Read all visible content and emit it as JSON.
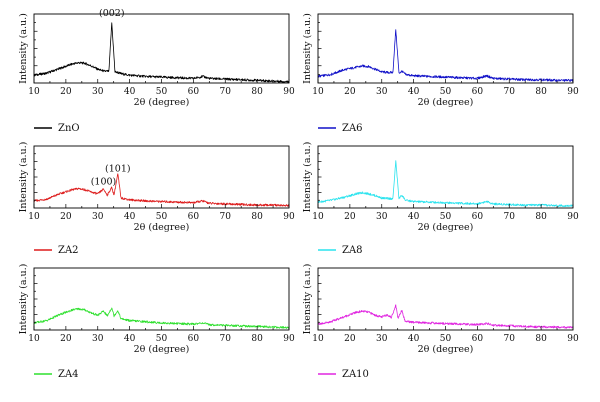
{
  "chart_data": [
    {
      "type": "line",
      "xlabel": "2θ (degree)",
      "ylabel": "Intensity (a.u.)",
      "xlim": [
        10,
        90
      ],
      "xticks": [
        10,
        20,
        30,
        40,
        50,
        60,
        70,
        80,
        90
      ],
      "grid": false,
      "legend_position": "below",
      "series": [
        {
          "name": "ZnO",
          "color": "#000000",
          "x": [
            10,
            14,
            18,
            22,
            24,
            26,
            28,
            30,
            32,
            33.5,
            34.4,
            35.4,
            36.3,
            37.5,
            40,
            45,
            50,
            55,
            60,
            62.9,
            65,
            70,
            75,
            80,
            85,
            90
          ],
          "y": [
            0.12,
            0.15,
            0.22,
            0.29,
            0.31,
            0.3,
            0.26,
            0.21,
            0.18,
            0.18,
            0.92,
            0.17,
            0.16,
            0.14,
            0.12,
            0.1,
            0.09,
            0.08,
            0.07,
            0.1,
            0.07,
            0.06,
            0.05,
            0.04,
            0.03,
            0.02
          ]
        }
      ],
      "annotations": [
        {
          "text": "(002)",
          "x": 34.4,
          "y": 1.02
        }
      ]
    },
    {
      "type": "line",
      "xlabel": "2θ (degree)",
      "ylabel": "Intensity (a.u.)",
      "xlim": [
        10,
        90
      ],
      "xticks": [
        10,
        20,
        30,
        40,
        50,
        60,
        70,
        80,
        90
      ],
      "grid": false,
      "legend_position": "below",
      "series": [
        {
          "name": "ZA6",
          "color": "#1010c8",
          "x": [
            10,
            14,
            18,
            22,
            24,
            26,
            28,
            30,
            32,
            33.5,
            34.4,
            35.4,
            36.3,
            37.5,
            40,
            45,
            50,
            55,
            60,
            62.9,
            65,
            70,
            75,
            80,
            85,
            90
          ],
          "y": [
            0.1,
            0.13,
            0.2,
            0.24,
            0.26,
            0.25,
            0.21,
            0.17,
            0.16,
            0.16,
            0.82,
            0.15,
            0.18,
            0.13,
            0.11,
            0.1,
            0.09,
            0.08,
            0.07,
            0.11,
            0.07,
            0.06,
            0.05,
            0.05,
            0.04,
            0.04
          ]
        }
      ]
    },
    {
      "type": "line",
      "xlabel": "2θ (degree)",
      "ylabel": "Intensity (a.u.)",
      "xlim": [
        10,
        90
      ],
      "xticks": [
        10,
        20,
        30,
        40,
        50,
        60,
        70,
        80,
        90
      ],
      "grid": false,
      "legend_position": "below",
      "series": [
        {
          "name": "ZA2",
          "color": "#dd1c1c",
          "x": [
            10,
            14,
            18,
            22,
            24,
            26,
            28,
            30,
            31.8,
            33,
            34.4,
            35.1,
            36.3,
            37.3,
            40,
            45,
            50,
            55,
            60,
            62.9,
            65,
            70,
            75,
            80,
            85,
            90
          ],
          "y": [
            0.12,
            0.15,
            0.24,
            0.31,
            0.33,
            0.31,
            0.27,
            0.24,
            0.32,
            0.22,
            0.35,
            0.22,
            0.58,
            0.17,
            0.14,
            0.12,
            0.11,
            0.1,
            0.09,
            0.12,
            0.08,
            0.07,
            0.06,
            0.05,
            0.05,
            0.04
          ]
        }
      ],
      "annotations": [
        {
          "text": "(100)",
          "x": 31.8,
          "y": 0.4
        },
        {
          "text": "(101)",
          "x": 36.3,
          "y": 0.62
        }
      ]
    },
    {
      "type": "line",
      "xlabel": "2θ (degree)",
      "ylabel": "Intensity (a.u.)",
      "xlim": [
        10,
        90
      ],
      "xticks": [
        10,
        20,
        30,
        40,
        50,
        60,
        70,
        80,
        90
      ],
      "grid": false,
      "legend_position": "below",
      "series": [
        {
          "name": "ZA8",
          "color": "#2ae3ee",
          "x": [
            10,
            14,
            18,
            22,
            24,
            26,
            28,
            30,
            32,
            33.5,
            34.4,
            35.4,
            36.3,
            37.5,
            40,
            45,
            50,
            55,
            60,
            62.9,
            65,
            70,
            75,
            80,
            85,
            90
          ],
          "y": [
            0.1,
            0.13,
            0.18,
            0.24,
            0.26,
            0.24,
            0.21,
            0.17,
            0.16,
            0.16,
            0.8,
            0.16,
            0.22,
            0.13,
            0.11,
            0.1,
            0.09,
            0.08,
            0.07,
            0.11,
            0.07,
            0.06,
            0.05,
            0.05,
            0.04,
            0.04
          ]
        }
      ]
    },
    {
      "type": "line",
      "xlabel": "2θ (degree)",
      "ylabel": "Intensity (a.u.)",
      "xlim": [
        10,
        90
      ],
      "xticks": [
        10,
        20,
        30,
        40,
        50,
        60,
        70,
        80,
        90
      ],
      "grid": false,
      "legend_position": "below",
      "series": [
        {
          "name": "ZA4",
          "color": "#2fe02f",
          "x": [
            10,
            14,
            18,
            22,
            24,
            26,
            28,
            30,
            31.8,
            33,
            34.4,
            35.1,
            36.3,
            37.3,
            40,
            45,
            50,
            55,
            60,
            62.9,
            65,
            70,
            75,
            80,
            85,
            90
          ],
          "y": [
            0.12,
            0.16,
            0.26,
            0.34,
            0.36,
            0.34,
            0.29,
            0.25,
            0.32,
            0.24,
            0.38,
            0.24,
            0.33,
            0.19,
            0.16,
            0.14,
            0.12,
            0.11,
            0.1,
            0.12,
            0.09,
            0.08,
            0.07,
            0.06,
            0.05,
            0.04
          ]
        }
      ]
    },
    {
      "type": "line",
      "xlabel": "2θ (degree)",
      "ylabel": "Intensity (a.u.)",
      "xlim": [
        10,
        90
      ],
      "xticks": [
        10,
        20,
        30,
        40,
        50,
        60,
        70,
        80,
        90
      ],
      "grid": false,
      "legend_position": "below",
      "series": [
        {
          "name": "ZA10",
          "color": "#e026e0",
          "x": [
            10,
            14,
            18,
            22,
            24,
            26,
            28,
            30,
            31.8,
            33,
            34.4,
            35.1,
            36.3,
            37.3,
            40,
            45,
            50,
            55,
            60,
            62.9,
            65,
            70,
            75,
            80,
            85,
            90
          ],
          "y": [
            0.1,
            0.14,
            0.22,
            0.3,
            0.32,
            0.3,
            0.25,
            0.22,
            0.26,
            0.21,
            0.42,
            0.2,
            0.34,
            0.15,
            0.13,
            0.12,
            0.11,
            0.1,
            0.09,
            0.11,
            0.08,
            0.07,
            0.06,
            0.05,
            0.05,
            0.04
          ]
        }
      ]
    }
  ]
}
